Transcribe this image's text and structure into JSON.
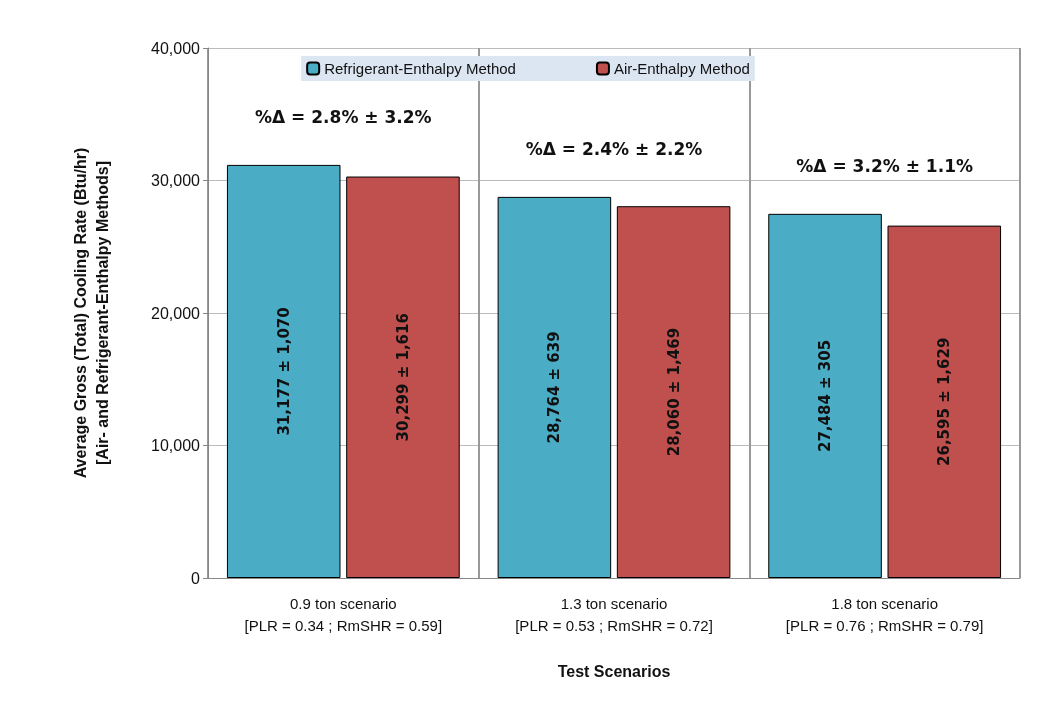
{
  "chart_data": {
    "type": "bar",
    "xlabel": "Test Scenarios",
    "ylabel": "Average Gross (Total) Cooling Rate (Btu/hr)\n[Air- and Refrigerant-Enthalpy Methods]",
    "categories": [
      "0.9 ton scenario\n[PLR = 0.34 ; RmSHR = 0.59]",
      "1.3 ton scenario\n[PLR = 0.53 ; RmSHR = 0.72]",
      "1.8 ton scenario\n[PLR = 0.76 ; RmSHR = 0.79]"
    ],
    "series": [
      {
        "name": "Refrigerant-Enthalpy Method",
        "color": "#4bacc6",
        "values": [
          31177,
          28764,
          27484
        ],
        "value_labels": [
          "31,177 ± 1,070",
          "28,764 ± 639",
          "27,484 ± 305"
        ]
      },
      {
        "name": "Air-Enthalpy Method",
        "color": "#c0504d",
        "values": [
          30299,
          28060,
          26595
        ],
        "value_labels": [
          "30,299 ± 1,616",
          "28,060 ± 1,469",
          "26,595 ± 1,629"
        ]
      }
    ],
    "ylim": [
      0,
      40000
    ],
    "yticks": [
      {
        "value": 0,
        "label": "0"
      },
      {
        "value": 10000,
        "label": "10,000"
      },
      {
        "value": 20000,
        "label": "20,000"
      },
      {
        "value": 30000,
        "label": "30,000"
      },
      {
        "value": 40000,
        "label": "40,000"
      }
    ],
    "annotations": [
      "%Δ = 2.8% ± 3.2%",
      "%Δ = 2.4% ± 2.2%",
      "%Δ = 3.2% ± 1.1%"
    ],
    "grid": true,
    "legend": "top"
  }
}
